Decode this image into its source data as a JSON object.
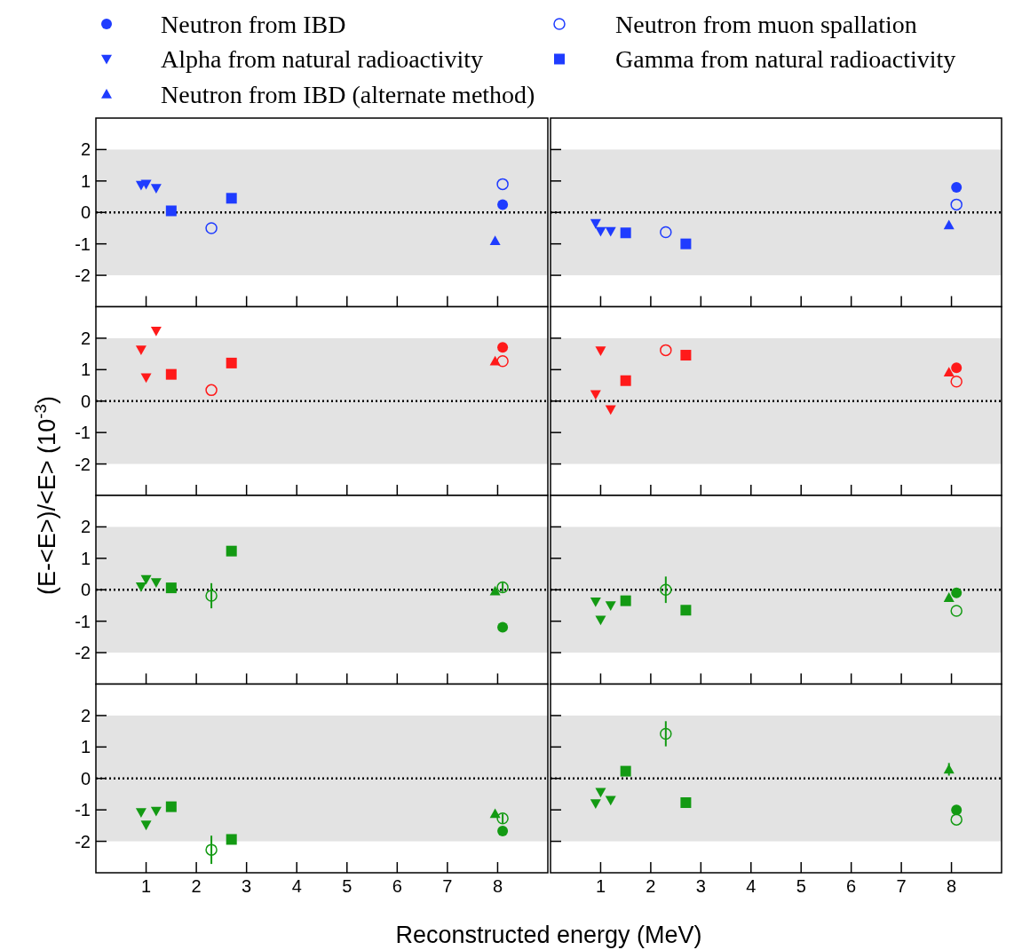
{
  "chart_data": [
    {
      "type": "scatter",
      "xlim": [
        0,
        9
      ],
      "ylim": [
        -3,
        3
      ],
      "xticks": [
        1,
        2,
        3,
        4,
        5,
        6,
        7,
        8
      ],
      "yticks": [
        -2,
        -1,
        0,
        1,
        2
      ],
      "tick_labels": "y",
      "legend": "top",
      "ref_lines": [
        {
          "axis": "y",
          "value": 0,
          "line_style": "dotted",
          "color": "#000000"
        }
      ],
      "bands": [
        {
          "axis": "y",
          "from": -2,
          "to": 2,
          "color": "#e3e3e3"
        }
      ],
      "series": [
        {
          "name": "Neutron from IBD",
          "marker": "circle",
          "color": "#1f3cff",
          "x": [
            8.1
          ],
          "values": [
            0.25
          ]
        },
        {
          "name": "Neutron from muon spallation",
          "marker": "circle-open",
          "color": "#1f3cff",
          "x": [
            2.3,
            8.1
          ],
          "values": [
            -0.5,
            0.9
          ]
        },
        {
          "name": "Alpha from natural radioactivity",
          "marker": "triangle-down",
          "color": "#1f3cff",
          "x": [
            0.9,
            1.0,
            1.2
          ],
          "values": [
            0.87,
            0.9,
            0.77
          ]
        },
        {
          "name": "Gamma from natural radioactivity",
          "marker": "square",
          "color": "#1f3cff",
          "x": [
            1.5,
            2.7
          ],
          "values": [
            0.05,
            0.45
          ]
        },
        {
          "name": "Neutron from IBD (alternate method)",
          "marker": "triangle",
          "color": "#1f3cff",
          "x": [
            7.95
          ],
          "values": [
            -0.9
          ]
        }
      ]
    },
    {
      "type": "scatter",
      "xlim": [
        0,
        9
      ],
      "ylim": [
        -3,
        3
      ],
      "xticks": [
        1,
        2,
        3,
        4,
        5,
        6,
        7,
        8
      ],
      "yticks": [
        -2,
        -1,
        0,
        1,
        2
      ],
      "tick_labels": false,
      "ref_lines": [
        {
          "axis": "y",
          "value": 0,
          "line_style": "dotted",
          "color": "#000000"
        }
      ],
      "bands": [
        {
          "axis": "y",
          "from": -2,
          "to": 2,
          "color": "#e3e3e3"
        }
      ],
      "series": [
        {
          "marker": "circle",
          "color": "#1f3cff",
          "x": [
            8.1
          ],
          "values": [
            0.8
          ]
        },
        {
          "marker": "circle-open",
          "color": "#1f3cff",
          "x": [
            2.3,
            8.1
          ],
          "values": [
            -0.63,
            0.25
          ]
        },
        {
          "marker": "triangle-down",
          "color": "#1f3cff",
          "x": [
            0.9,
            1.0,
            1.2
          ],
          "values": [
            -0.35,
            -0.6,
            -0.6
          ]
        },
        {
          "marker": "square",
          "color": "#1f3cff",
          "x": [
            1.5,
            2.7
          ],
          "values": [
            -0.65,
            -1.0
          ]
        },
        {
          "marker": "triangle",
          "color": "#1f3cff",
          "x": [
            7.95
          ],
          "values": [
            -0.4
          ]
        }
      ]
    },
    {
      "type": "scatter",
      "xlim": [
        0,
        9
      ],
      "ylim": [
        -3,
        3
      ],
      "xticks": [
        1,
        2,
        3,
        4,
        5,
        6,
        7,
        8
      ],
      "yticks": [
        -2,
        -1,
        0,
        1,
        2
      ],
      "tick_labels": "y",
      "ylabel": "(E-<E>)/<E> (10$^{-3}$)",
      "ref_lines": [
        {
          "axis": "y",
          "value": 0,
          "line_style": "dotted",
          "color": "#000000"
        }
      ],
      "bands": [
        {
          "axis": "y",
          "from": -2,
          "to": 2,
          "color": "#e3e3e3"
        }
      ],
      "series": [
        {
          "marker": "circle",
          "color": "#ff1a1a",
          "x": [
            8.1
          ],
          "values": [
            1.71
          ]
        },
        {
          "marker": "circle-open",
          "color": "#ff1a1a",
          "x": [
            2.3,
            8.1
          ],
          "values": [
            0.35,
            1.27
          ]
        },
        {
          "marker": "triangle-down",
          "color": "#ff1a1a",
          "x": [
            0.9,
            1.0,
            1.2
          ],
          "values": [
            1.63,
            0.75,
            2.23
          ]
        },
        {
          "marker": "square",
          "color": "#ff1a1a",
          "x": [
            1.5,
            2.7
          ],
          "values": [
            0.85,
            1.21
          ]
        },
        {
          "marker": "triangle",
          "color": "#ff1a1a",
          "x": [
            7.95
          ],
          "values": [
            1.27
          ]
        }
      ]
    },
    {
      "type": "scatter",
      "xlim": [
        0,
        9
      ],
      "ylim": [
        -3,
        3
      ],
      "xticks": [
        1,
        2,
        3,
        4,
        5,
        6,
        7,
        8
      ],
      "yticks": [
        -2,
        -1,
        0,
        1,
        2
      ],
      "tick_labels": false,
      "ref_lines": [
        {
          "axis": "y",
          "value": 0,
          "line_style": "dotted",
          "color": "#000000"
        }
      ],
      "bands": [
        {
          "axis": "y",
          "from": -2,
          "to": 2,
          "color": "#e3e3e3"
        }
      ],
      "series": [
        {
          "marker": "circle",
          "color": "#ff1a1a",
          "x": [
            8.1
          ],
          "values": [
            1.06
          ]
        },
        {
          "marker": "circle-open",
          "color": "#ff1a1a",
          "x": [
            2.3,
            8.1
          ],
          "values": [
            1.62,
            0.62
          ]
        },
        {
          "marker": "triangle-down",
          "color": "#ff1a1a",
          "x": [
            0.9,
            1.0,
            1.2
          ],
          "values": [
            0.21,
            1.6,
            -0.27
          ]
        },
        {
          "marker": "square",
          "color": "#ff1a1a",
          "x": [
            1.5,
            2.7
          ],
          "values": [
            0.65,
            1.46
          ]
        },
        {
          "marker": "triangle",
          "color": "#ff1a1a",
          "x": [
            7.95
          ],
          "values": [
            0.92
          ]
        }
      ]
    },
    {
      "type": "scatter",
      "xlim": [
        0,
        9
      ],
      "ylim": [
        -3,
        3
      ],
      "xticks": [
        1,
        2,
        3,
        4,
        5,
        6,
        7,
        8
      ],
      "yticks": [
        -2,
        -1,
        0,
        1,
        2
      ],
      "tick_labels": "y",
      "ref_lines": [
        {
          "axis": "y",
          "value": 0,
          "line_style": "dotted",
          "color": "#000000"
        }
      ],
      "bands": [
        {
          "axis": "y",
          "from": -2,
          "to": 2,
          "color": "#e3e3e3"
        }
      ],
      "series": [
        {
          "marker": "circle",
          "color": "#139a13",
          "x": [
            8.1
          ],
          "values": [
            -1.19
          ]
        },
        {
          "marker": "circle-open",
          "color": "#139a13",
          "x": [
            2.3,
            8.1
          ],
          "values": [
            -0.19,
            0.08
          ],
          "errors": [
            0.4,
            0.15
          ]
        },
        {
          "marker": "triangle-down",
          "color": "#139a13",
          "x": [
            0.9,
            1.0,
            1.2
          ],
          "values": [
            0.1,
            0.33,
            0.23
          ]
        },
        {
          "marker": "square",
          "color": "#139a13",
          "x": [
            1.5,
            2.7
          ],
          "values": [
            0.06,
            1.23
          ]
        },
        {
          "marker": "triangle",
          "color": "#139a13",
          "x": [
            7.95
          ],
          "values": [
            -0.04
          ]
        }
      ]
    },
    {
      "type": "scatter",
      "xlim": [
        0,
        9
      ],
      "ylim": [
        -3,
        3
      ],
      "xticks": [
        1,
        2,
        3,
        4,
        5,
        6,
        7,
        8
      ],
      "yticks": [
        -2,
        -1,
        0,
        1,
        2
      ],
      "tick_labels": false,
      "ref_lines": [
        {
          "axis": "y",
          "value": 0,
          "line_style": "dotted",
          "color": "#000000"
        }
      ],
      "bands": [
        {
          "axis": "y",
          "from": -2,
          "to": 2,
          "color": "#e3e3e3"
        }
      ],
      "series": [
        {
          "marker": "circle",
          "color": "#139a13",
          "x": [
            8.1
          ],
          "values": [
            -0.1
          ]
        },
        {
          "marker": "circle-open",
          "color": "#139a13",
          "x": [
            2.3,
            8.1
          ],
          "values": [
            0.0,
            -0.67
          ],
          "errors": [
            0.42,
            null
          ]
        },
        {
          "marker": "triangle-down",
          "color": "#139a13",
          "x": [
            0.9,
            1.0,
            1.2
          ],
          "values": [
            -0.38,
            -0.96,
            -0.5
          ]
        },
        {
          "marker": "square",
          "color": "#139a13",
          "x": [
            1.5,
            2.7
          ],
          "values": [
            -0.35,
            -0.65
          ]
        },
        {
          "marker": "triangle",
          "color": "#139a13",
          "x": [
            7.95
          ],
          "values": [
            -0.25
          ]
        }
      ]
    },
    {
      "type": "scatter",
      "xlim": [
        0,
        9
      ],
      "ylim": [
        -3,
        3
      ],
      "xticks": [
        1,
        2,
        3,
        4,
        5,
        6,
        7,
        8
      ],
      "yticks": [
        -2,
        -1,
        0,
        1,
        2
      ],
      "xlabel": "Reconstructed energy (MeV)",
      "ref_lines": [
        {
          "axis": "y",
          "value": 0,
          "line_style": "dotted",
          "color": "#000000"
        }
      ],
      "bands": [
        {
          "axis": "y",
          "from": -2,
          "to": 2,
          "color": "#e3e3e3"
        }
      ],
      "series": [
        {
          "marker": "circle",
          "color": "#139a13",
          "x": [
            8.1
          ],
          "values": [
            -1.67
          ]
        },
        {
          "marker": "circle-open",
          "color": "#139a13",
          "x": [
            2.3,
            8.1
          ],
          "values": [
            -2.27,
            -1.27
          ],
          "errors": [
            0.45,
            0.15
          ]
        },
        {
          "marker": "triangle-down",
          "color": "#139a13",
          "x": [
            0.9,
            1.0,
            1.2
          ],
          "values": [
            -1.08,
            -1.48,
            -1.04
          ]
        },
        {
          "marker": "square",
          "color": "#139a13",
          "x": [
            1.5,
            2.7
          ],
          "values": [
            -0.9,
            -1.94
          ]
        },
        {
          "marker": "triangle",
          "color": "#139a13",
          "x": [
            7.95
          ],
          "values": [
            -1.12
          ]
        }
      ]
    },
    {
      "type": "scatter",
      "xlim": [
        0,
        9
      ],
      "ylim": [
        -3,
        3
      ],
      "xticks": [
        1,
        2,
        3,
        4,
        5,
        6,
        7,
        8
      ],
      "yticks": [
        -2,
        -1,
        0,
        1,
        2
      ],
      "tick_labels": "x",
      "ref_lines": [
        {
          "axis": "y",
          "value": 0,
          "line_style": "dotted",
          "color": "#000000"
        }
      ],
      "bands": [
        {
          "axis": "y",
          "from": -2,
          "to": 2,
          "color": "#e3e3e3"
        }
      ],
      "series": [
        {
          "marker": "circle",
          "color": "#139a13",
          "x": [
            8.1
          ],
          "values": [
            -1.0
          ]
        },
        {
          "marker": "circle-open",
          "color": "#139a13",
          "x": [
            2.3,
            8.1
          ],
          "values": [
            1.42,
            -1.31
          ],
          "errors": [
            0.4,
            null
          ]
        },
        {
          "marker": "triangle-down",
          "color": "#139a13",
          "x": [
            0.9,
            1.0,
            1.2
          ],
          "values": [
            -0.8,
            -0.44,
            -0.69
          ]
        },
        {
          "marker": "square",
          "color": "#139a13",
          "x": [
            1.5,
            2.7
          ],
          "values": [
            0.23,
            -0.77
          ]
        },
        {
          "marker": "triangle",
          "color": "#139a13",
          "x": [
            7.95
          ],
          "values": [
            0.29
          ],
          "errors": [
            0.2
          ]
        }
      ]
    }
  ]
}
